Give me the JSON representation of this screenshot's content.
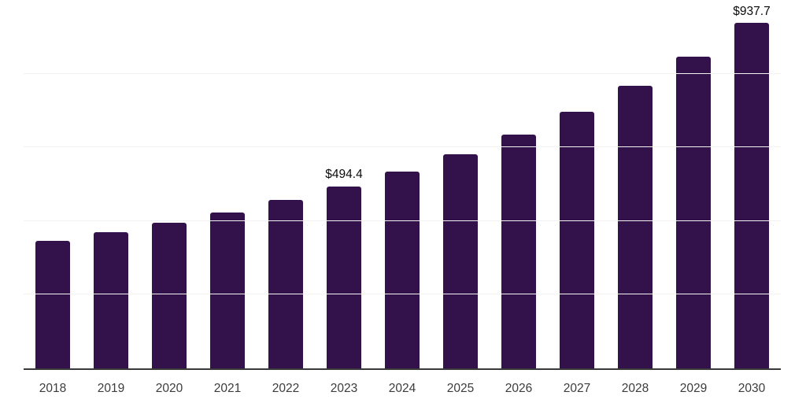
{
  "chart": {
    "background_color": "#ffffff",
    "bar_color": "#33124b",
    "axis_color": "#3a3a3a",
    "gridline_color": "#f2f2f2",
    "axis_label_color": "#3c3c3c",
    "value_label_color": "#0b0b0b"
  },
  "chart_data": {
    "type": "bar",
    "title": "",
    "xlabel": "",
    "ylabel": "",
    "categories": [
      "2018",
      "2019",
      "2020",
      "2021",
      "2022",
      "2023",
      "2024",
      "2025",
      "2026",
      "2027",
      "2028",
      "2029",
      "2030"
    ],
    "values": [
      347,
      370,
      396,
      424,
      458,
      494.4,
      534,
      582,
      635,
      696,
      768,
      846,
      937.7
    ],
    "data_labels": [
      "",
      "",
      "",
      "",
      "",
      "$494.4",
      "",
      "",
      "",
      "",
      "",
      "",
      "$937.7"
    ],
    "ylim": [
      0,
      1000
    ],
    "gridline_step": 200,
    "grid": "horizontal-only",
    "legend": "none",
    "y_tick_labels_visible": false
  }
}
